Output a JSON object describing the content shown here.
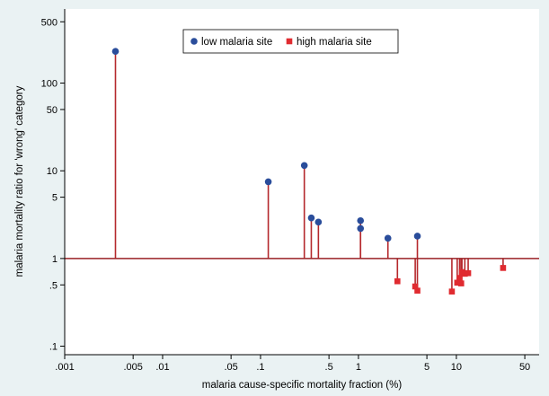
{
  "chart_data": {
    "type": "scatter",
    "title": "",
    "xlabel": "malaria cause-specific mortality fraction (%)",
    "ylabel": "malaria mortality ratio for 'wrong' category",
    "x_scale": "log",
    "y_scale": "log",
    "xlim": [
      0.001,
      70
    ],
    "ylim": [
      0.08,
      700
    ],
    "x_ticks": [
      0.001,
      0.005,
      0.01,
      0.05,
      0.1,
      0.5,
      1,
      5,
      10,
      50
    ],
    "x_tick_labels": [
      ".001",
      ".005",
      ".01",
      ".05",
      ".1",
      ".5",
      "1",
      "5",
      "10",
      "50"
    ],
    "y_ticks": [
      0.1,
      0.5,
      1,
      5,
      10,
      50,
      100,
      500
    ],
    "y_tick_labels": [
      ".1",
      ".5",
      "1",
      "5",
      "10",
      "50",
      "100",
      "500"
    ],
    "reference_line": 1,
    "grid": false,
    "legend_position": "top-center",
    "series": [
      {
        "name": "low malaria site",
        "marker": "circle",
        "color": "#2a4d9b",
        "points": [
          {
            "x": 0.0033,
            "y": 230
          },
          {
            "x": 0.12,
            "y": 7.5
          },
          {
            "x": 0.28,
            "y": 11.5
          },
          {
            "x": 0.33,
            "y": 2.9
          },
          {
            "x": 0.39,
            "y": 2.6
          },
          {
            "x": 1.05,
            "y": 2.7
          },
          {
            "x": 1.05,
            "y": 2.2
          },
          {
            "x": 2.0,
            "y": 1.7
          },
          {
            "x": 4.0,
            "y": 1.8
          }
        ]
      },
      {
        "name": "high malaria site",
        "marker": "square",
        "color": "#e02b30",
        "points": [
          {
            "x": 2.5,
            "y": 0.55
          },
          {
            "x": 3.8,
            "y": 0.48
          },
          {
            "x": 4.0,
            "y": 0.43
          },
          {
            "x": 9.0,
            "y": 0.42
          },
          {
            "x": 10.2,
            "y": 0.53
          },
          {
            "x": 10.8,
            "y": 0.6
          },
          {
            "x": 11.2,
            "y": 0.52
          },
          {
            "x": 11.4,
            "y": 0.7
          },
          {
            "x": 12.2,
            "y": 0.67
          },
          {
            "x": 13.2,
            "y": 0.68
          },
          {
            "x": 30.0,
            "y": 0.78
          }
        ]
      }
    ],
    "stem_color": "#b5282c",
    "reference_line_color": "#9a2226"
  }
}
